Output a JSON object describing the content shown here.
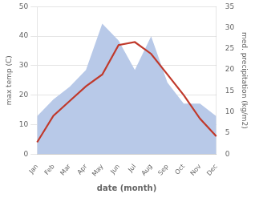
{
  "chart_data": {
    "type": "line",
    "xlabel": "date (month)",
    "ylabel": "max temp (C)",
    "y2label": "med. precipitation (kg/m2)",
    "categories": [
      "Jan",
      "Feb",
      "Mar",
      "Apr",
      "May",
      "Jun",
      "Jul",
      "Aug",
      "Sep",
      "Oct",
      "Nov",
      "Dec"
    ],
    "series": [
      {
        "type": "area",
        "axis": "y2",
        "color": "#b8c9e8",
        "values": [
          9,
          13,
          16,
          20,
          31,
          27,
          20,
          28,
          17,
          12,
          12,
          9
        ]
      },
      {
        "type": "line",
        "color": "#c0392b",
        "values": [
          4,
          13,
          18,
          23,
          27,
          37,
          38,
          34,
          27,
          20,
          12,
          6
        ]
      }
    ],
    "ylim": [
      0,
      50
    ],
    "yticks": [
      0,
      10,
      20,
      30,
      40,
      50
    ],
    "y2lim": [
      0,
      35
    ],
    "y2ticks": [
      0,
      5,
      10,
      15,
      20,
      25,
      30,
      35
    ],
    "grid": true
  }
}
